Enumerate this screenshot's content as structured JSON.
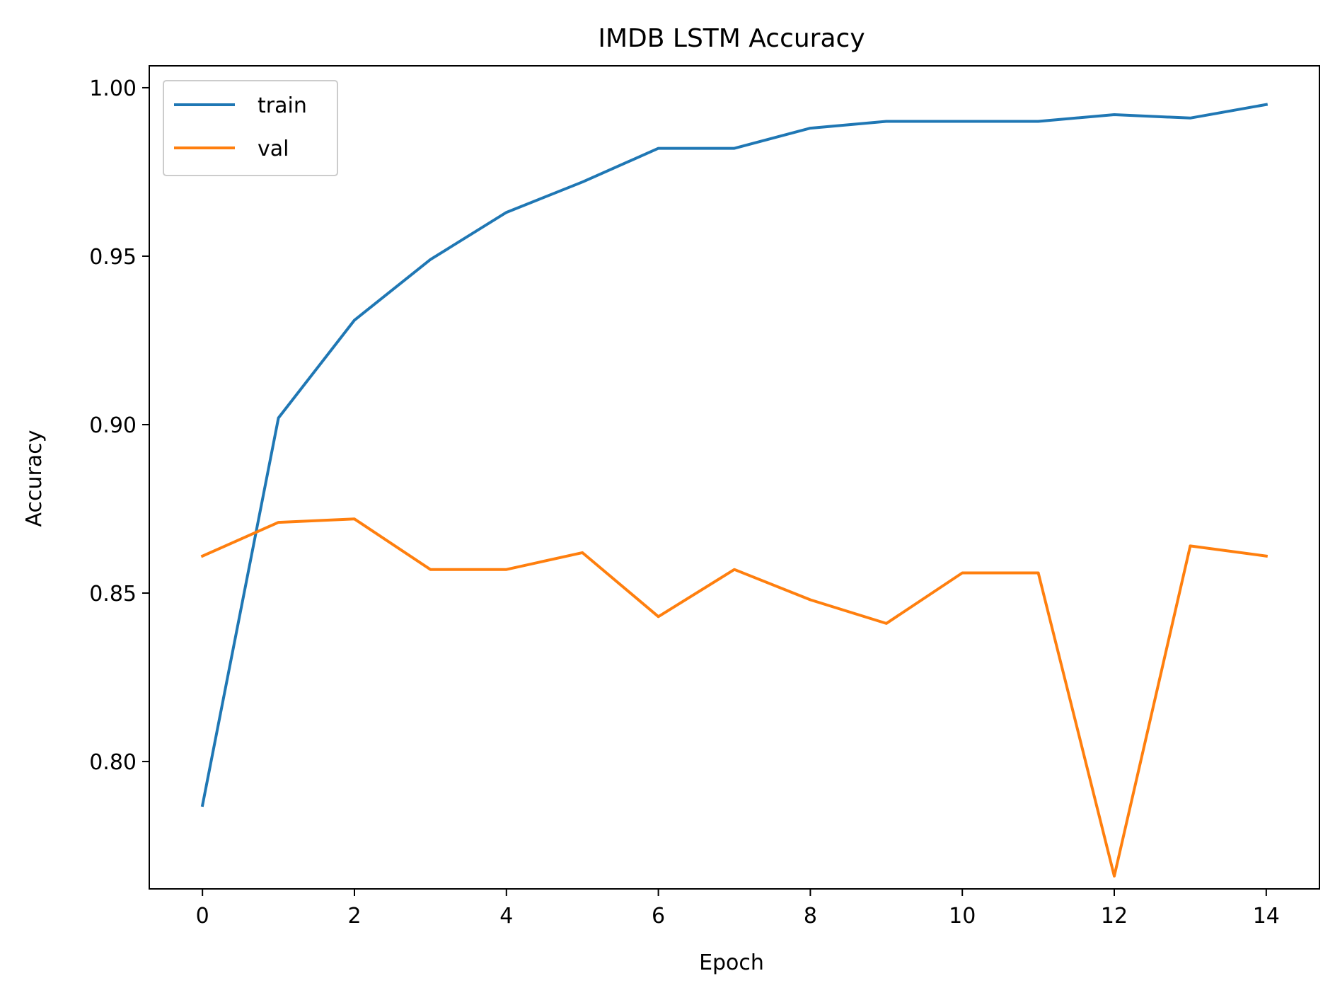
{
  "chart_data": {
    "type": "line",
    "title": "IMDB LSTM Accuracy",
    "xlabel": "Epoch",
    "ylabel": "Accuracy",
    "x": [
      0,
      1,
      2,
      3,
      4,
      5,
      6,
      7,
      8,
      9,
      10,
      11,
      12,
      13,
      14
    ],
    "xlim": [
      -0.7,
      14.7
    ],
    "ylim": [
      0.7622,
      1.0065
    ],
    "xticks": [
      0,
      2,
      4,
      6,
      8,
      10,
      12,
      14
    ],
    "xtick_labels": [
      "0",
      "2",
      "4",
      "6",
      "8",
      "10",
      "12",
      "14"
    ],
    "yticks": [
      0.8,
      0.85,
      0.9,
      0.95,
      1.0
    ],
    "ytick_labels": [
      "0.80",
      "0.85",
      "0.90",
      "0.95",
      "1.00"
    ],
    "grid": false,
    "legend_position": "top-left",
    "series": [
      {
        "name": "train",
        "color": "#1f77b4",
        "values": [
          0.787,
          0.902,
          0.931,
          0.949,
          0.963,
          0.972,
          0.982,
          0.982,
          0.988,
          0.99,
          0.99,
          0.99,
          0.992,
          0.991,
          0.995
        ]
      },
      {
        "name": "val",
        "color": "#ff7f0e",
        "values": [
          0.861,
          0.871,
          0.872,
          0.857,
          0.857,
          0.862,
          0.843,
          0.857,
          0.848,
          0.841,
          0.856,
          0.856,
          0.766,
          0.864,
          0.861
        ]
      }
    ]
  }
}
